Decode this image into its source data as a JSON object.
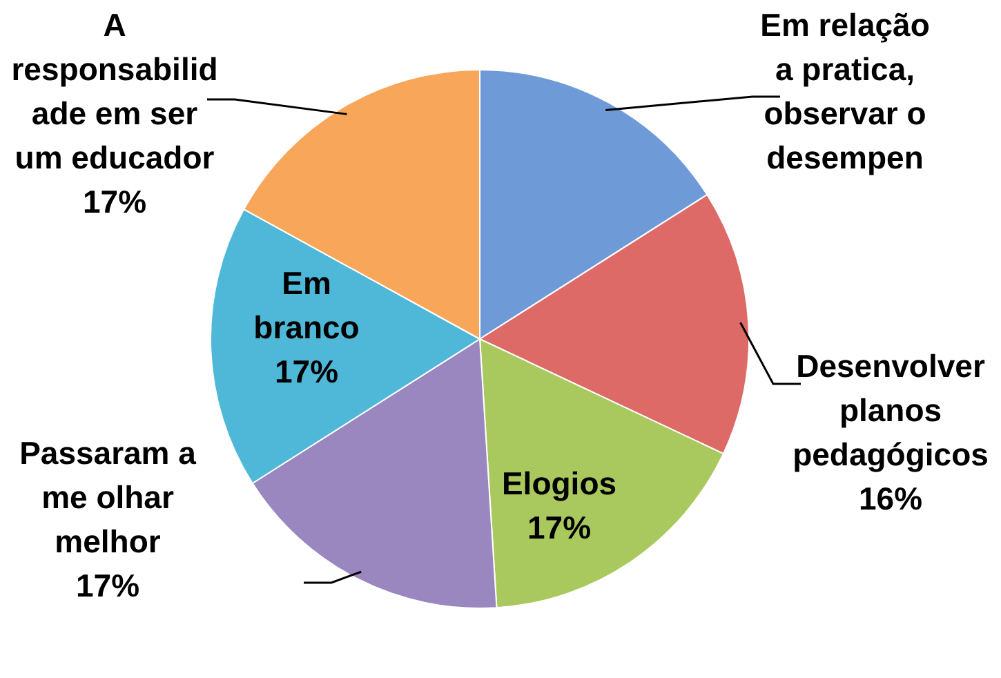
{
  "chart_data": {
    "type": "pie",
    "categories": [
      "Em relação a pratica, observar o desempen",
      "Desenvolver planos pedagógicos",
      "Elogios",
      "Passaram a me olhar melhor",
      "Em branco",
      "A responsabilidade em ser um educador"
    ],
    "values": [
      16,
      16,
      17,
      17,
      17,
      17
    ],
    "value_labels": [
      null,
      "16%",
      "17%",
      "17%",
      "17%",
      "17%"
    ],
    "colors": [
      "#6f9ad8",
      "#dd6a66",
      "#a9c95e",
      "#9b87c0",
      "#4fb8d8",
      "#f8a65a"
    ],
    "legend": false
  }
}
